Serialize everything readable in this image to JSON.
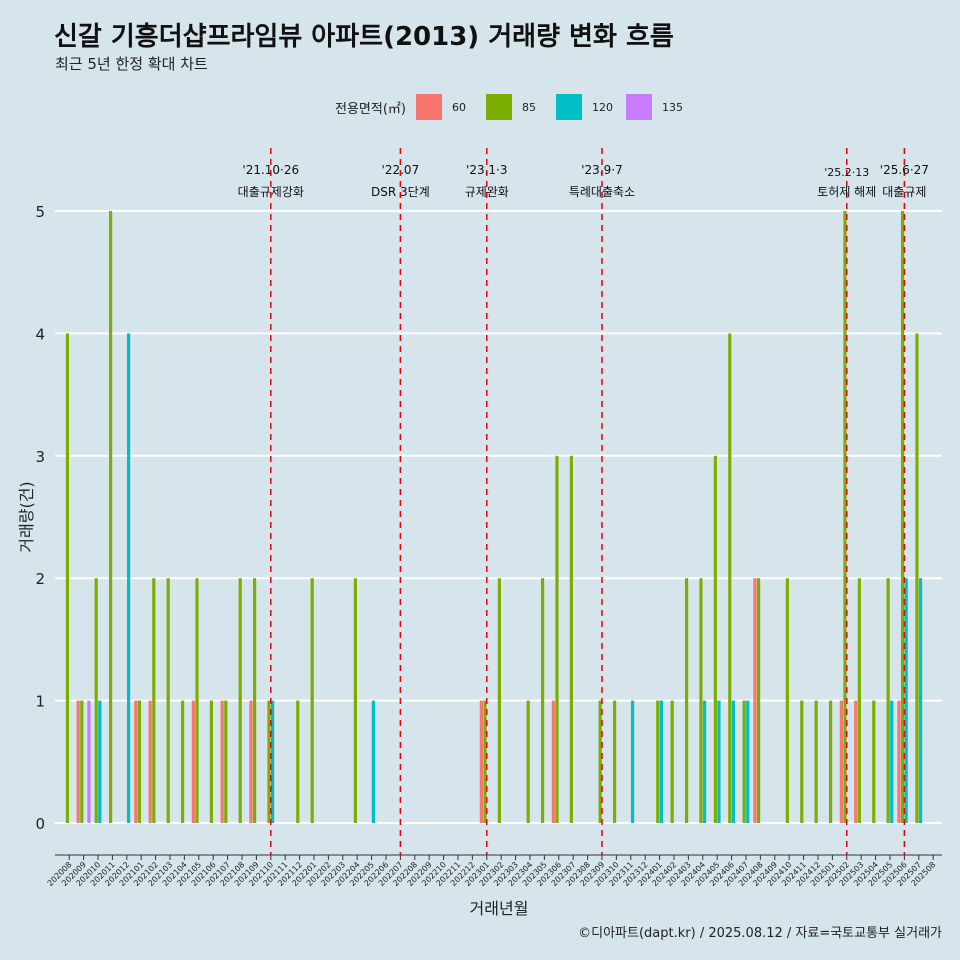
{
  "title": "신갈 기흥더샵프라임뷰 아파트(2013) 거래량 변화 흐름",
  "subtitle": "최근 5년 한정 확대 차트",
  "caption": "©디아파트(dapt.kr) / 2025.08.12 / 자료=국토교통부 실거래가",
  "legend_title": "전용면적(㎡)",
  "colors": {
    "60": "#f8766d",
    "85": "#7cae00",
    "120": "#00bfc4",
    "135": "#c77cff",
    "event_line": "#e8000b",
    "background": "#d6e4ec",
    "grid": "#ffffff"
  },
  "chart_data": {
    "type": "bar",
    "stacked": false,
    "title": "신갈 기흥더샵프라임뷰 아파트(2013) 거래량 변화 흐름",
    "subtitle": "최근 5년 한정 확대 차트",
    "xlabel": "거래년월",
    "ylabel": "거래량(건)",
    "ylim": [
      0,
      5
    ],
    "yticks": [
      0,
      1,
      2,
      3,
      4,
      5
    ],
    "grid": "horizontal",
    "legend_position": "top",
    "categories": [
      "202008",
      "202009",
      "202010",
      "202011",
      "202012",
      "202101",
      "202102",
      "202103",
      "202104",
      "202105",
      "202106",
      "202107",
      "202108",
      "202109",
      "202110",
      "202111",
      "202112",
      "202201",
      "202202",
      "202203",
      "202204",
      "202205",
      "202206",
      "202207",
      "202208",
      "202209",
      "202210",
      "202211",
      "202212",
      "202301",
      "202302",
      "202303",
      "202304",
      "202305",
      "202306",
      "202307",
      "202308",
      "202309",
      "202310",
      "202311",
      "202312",
      "202401",
      "202402",
      "202403",
      "202404",
      "202405",
      "202406",
      "202407",
      "202408",
      "202409",
      "202410",
      "202411",
      "202412",
      "202501",
      "202502",
      "202503",
      "202504",
      "202505",
      "202506",
      "202507",
      "202508"
    ],
    "series": [
      {
        "name": "60",
        "values": [
          {
            "x": "202009",
            "y": 1
          },
          {
            "x": "202101",
            "y": 1
          },
          {
            "x": "202102",
            "y": 1
          },
          {
            "x": "202105",
            "y": 1
          },
          {
            "x": "202107",
            "y": 1
          },
          {
            "x": "202109",
            "y": 1
          },
          {
            "x": "202301",
            "y": 1
          },
          {
            "x": "202306",
            "y": 1
          },
          {
            "x": "202408",
            "y": 2
          },
          {
            "x": "202502",
            "y": 1
          },
          {
            "x": "202503",
            "y": 1
          },
          {
            "x": "202506",
            "y": 1
          }
        ]
      },
      {
        "name": "85",
        "values": [
          {
            "x": "202008",
            "y": 4
          },
          {
            "x": "202009",
            "y": 1
          },
          {
            "x": "202010",
            "y": 2
          },
          {
            "x": "202011",
            "y": 5
          },
          {
            "x": "202101",
            "y": 1
          },
          {
            "x": "202102",
            "y": 2
          },
          {
            "x": "202103",
            "y": 2
          },
          {
            "x": "202104",
            "y": 1
          },
          {
            "x": "202105",
            "y": 2
          },
          {
            "x": "202106",
            "y": 1
          },
          {
            "x": "202107",
            "y": 1
          },
          {
            "x": "202108",
            "y": 2
          },
          {
            "x": "202109",
            "y": 2
          },
          {
            "x": "202110",
            "y": 1
          },
          {
            "x": "202112",
            "y": 1
          },
          {
            "x": "202201",
            "y": 2
          },
          {
            "x": "202204",
            "y": 2
          },
          {
            "x": "202301",
            "y": 1
          },
          {
            "x": "202302",
            "y": 2
          },
          {
            "x": "202304",
            "y": 1
          },
          {
            "x": "202305",
            "y": 2
          },
          {
            "x": "202306",
            "y": 3
          },
          {
            "x": "202307",
            "y": 3
          },
          {
            "x": "202309",
            "y": 1
          },
          {
            "x": "202310",
            "y": 1
          },
          {
            "x": "202401",
            "y": 1
          },
          {
            "x": "202402",
            "y": 1
          },
          {
            "x": "202403",
            "y": 2
          },
          {
            "x": "202404",
            "y": 2
          },
          {
            "x": "202405",
            "y": 3
          },
          {
            "x": "202406",
            "y": 4
          },
          {
            "x": "202407",
            "y": 1
          },
          {
            "x": "202408",
            "y": 2
          },
          {
            "x": "202410",
            "y": 2
          },
          {
            "x": "202411",
            "y": 1
          },
          {
            "x": "202412",
            "y": 1
          },
          {
            "x": "202501",
            "y": 1
          },
          {
            "x": "202502",
            "y": 5
          },
          {
            "x": "202503",
            "y": 2
          },
          {
            "x": "202504",
            "y": 1
          },
          {
            "x": "202505",
            "y": 2
          },
          {
            "x": "202506",
            "y": 5
          },
          {
            "x": "202507",
            "y": 4
          }
        ]
      },
      {
        "name": "120",
        "values": [
          {
            "x": "202010",
            "y": 1
          },
          {
            "x": "202012",
            "y": 4
          },
          {
            "x": "202110",
            "y": 1
          },
          {
            "x": "202205",
            "y": 1
          },
          {
            "x": "202311",
            "y": 1
          },
          {
            "x": "202401",
            "y": 1
          },
          {
            "x": "202404",
            "y": 1
          },
          {
            "x": "202405",
            "y": 1
          },
          {
            "x": "202406",
            "y": 1
          },
          {
            "x": "202407",
            "y": 1
          },
          {
            "x": "202505",
            "y": 1
          },
          {
            "x": "202506",
            "y": 2
          },
          {
            "x": "202507",
            "y": 2
          }
        ]
      },
      {
        "name": "135",
        "values": [
          {
            "x": "202009",
            "y": 1
          }
        ]
      }
    ],
    "annotations": [
      {
        "x": "202110",
        "date": "'21.10·26",
        "label": "대출규제강화",
        "tier": "high"
      },
      {
        "x": "202207",
        "date": "'22.07",
        "label": "DSR 3단계",
        "tier": "high"
      },
      {
        "x": "202301",
        "date": "'23.1·3",
        "label": "규제완화",
        "tier": "high"
      },
      {
        "x": "202309",
        "date": "'23.9·7",
        "label": "특례대출축소",
        "tier": "high"
      },
      {
        "x": "202502",
        "date": "'25.2·13",
        "label": "토허제 해제",
        "tier": "low"
      },
      {
        "x": "202506",
        "date": "'25.6·27",
        "label": "대출규제",
        "tier": "high"
      }
    ]
  }
}
